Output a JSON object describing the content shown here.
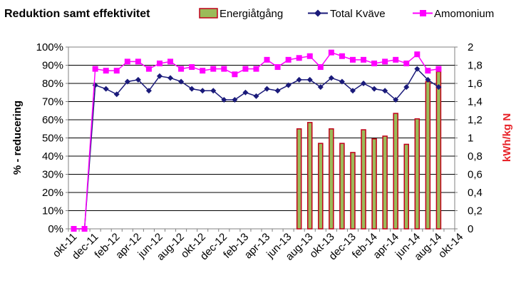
{
  "chart_data": {
    "type": "bar",
    "title": "Reduktion samt effektivitet",
    "ylabel": "% - reducering",
    "y2label": "kWh/kg N",
    "ylim": [
      0,
      100
    ],
    "y2lim": [
      0,
      2
    ],
    "grid": true,
    "legend_position": "top",
    "y_ticks": [
      "0%",
      "10%",
      "20%",
      "30%",
      "40%",
      "50%",
      "60%",
      "70%",
      "80%",
      "90%",
      "100%"
    ],
    "y2_ticks": [
      "0",
      "0,2",
      "0,4",
      "0,6",
      "0,8",
      "1",
      "1,2",
      "1,4",
      "1,6",
      "1,8",
      "2"
    ],
    "x_tick_labels": [
      "okt-11",
      "dec-11",
      "feb-12",
      "apr-12",
      "jun-12",
      "aug-12",
      "okt-12",
      "dec-12",
      "feb-13",
      "apr-13",
      "jun-13",
      "aug-13",
      "okt-13",
      "dec-13",
      "feb-14",
      "apr-14",
      "jun-14",
      "aug-14",
      "okt-14"
    ],
    "series": [
      {
        "name": "Energiåtgång",
        "type": "bar",
        "axis": "right",
        "color": "#9bbb59",
        "border": "#c0001a",
        "points": [
          {
            "x": "jul-13",
            "y": 1.1
          },
          {
            "x": "aug-13",
            "y": 1.17
          },
          {
            "x": "sep-13",
            "y": 0.94
          },
          {
            "x": "okt-13",
            "y": 1.1
          },
          {
            "x": "nov-13",
            "y": 0.94
          },
          {
            "x": "dec-13",
            "y": 0.84
          },
          {
            "x": "jan-14",
            "y": 1.09
          },
          {
            "x": "feb-14",
            "y": 0.99
          },
          {
            "x": "mar-14",
            "y": 1.02
          },
          {
            "x": "apr-14",
            "y": 1.27
          },
          {
            "x": "maj-14",
            "y": 0.93
          },
          {
            "x": "jun-14",
            "y": 1.21
          },
          {
            "x": "jul-14",
            "y": 1.62
          },
          {
            "x": "aug-14",
            "y": 1.73
          }
        ]
      },
      {
        "name": "Total Kväve",
        "type": "line",
        "axis": "left",
        "color": "#1a1a7a",
        "marker": "diamond",
        "x": [
          "okt-11",
          "nov-11",
          "dec-11",
          "jan-12",
          "feb-12",
          "mar-12",
          "apr-12",
          "maj-12",
          "jun-12",
          "jul-12",
          "aug-12",
          "sep-12",
          "okt-12",
          "nov-12",
          "dec-12",
          "jan-13",
          "feb-13",
          "mar-13",
          "apr-13",
          "maj-13",
          "jun-13",
          "jul-13",
          "aug-13",
          "sep-13",
          "okt-13",
          "nov-13",
          "dec-13",
          "jan-14",
          "feb-14",
          "mar-14",
          "apr-14",
          "maj-14",
          "jun-14",
          "jul-14",
          "aug-14"
        ],
        "values": [
          0,
          0,
          79,
          77,
          74,
          81,
          82,
          76,
          84,
          83,
          81,
          77,
          76,
          76,
          71,
          71,
          75,
          73,
          77,
          76,
          79,
          82,
          82,
          78,
          83,
          81,
          76,
          80,
          77,
          76,
          71,
          78,
          88,
          82,
          78
        ]
      },
      {
        "name": "Amomonium",
        "type": "line",
        "axis": "left",
        "color": "#ff00ff",
        "marker": "square",
        "x": [
          "okt-11",
          "nov-11",
          "dec-11",
          "jan-12",
          "feb-12",
          "mar-12",
          "apr-12",
          "maj-12",
          "jun-12",
          "jul-12",
          "aug-12",
          "sep-12",
          "okt-12",
          "nov-12",
          "dec-12",
          "jan-13",
          "feb-13",
          "mar-13",
          "apr-13",
          "maj-13",
          "jun-13",
          "jul-13",
          "aug-13",
          "sep-13",
          "okt-13",
          "nov-13",
          "dec-13",
          "jan-14",
          "feb-14",
          "mar-14",
          "apr-14",
          "maj-14",
          "jun-14",
          "jul-14",
          "aug-14"
        ],
        "values": [
          0,
          0,
          88,
          87,
          87,
          92,
          92,
          88,
          91,
          92,
          88,
          89,
          87,
          88,
          88,
          85,
          88,
          88,
          93,
          89,
          93,
          94,
          95,
          89,
          97,
          95,
          93,
          93,
          91,
          92,
          93,
          91,
          96,
          87,
          88
        ]
      }
    ]
  }
}
